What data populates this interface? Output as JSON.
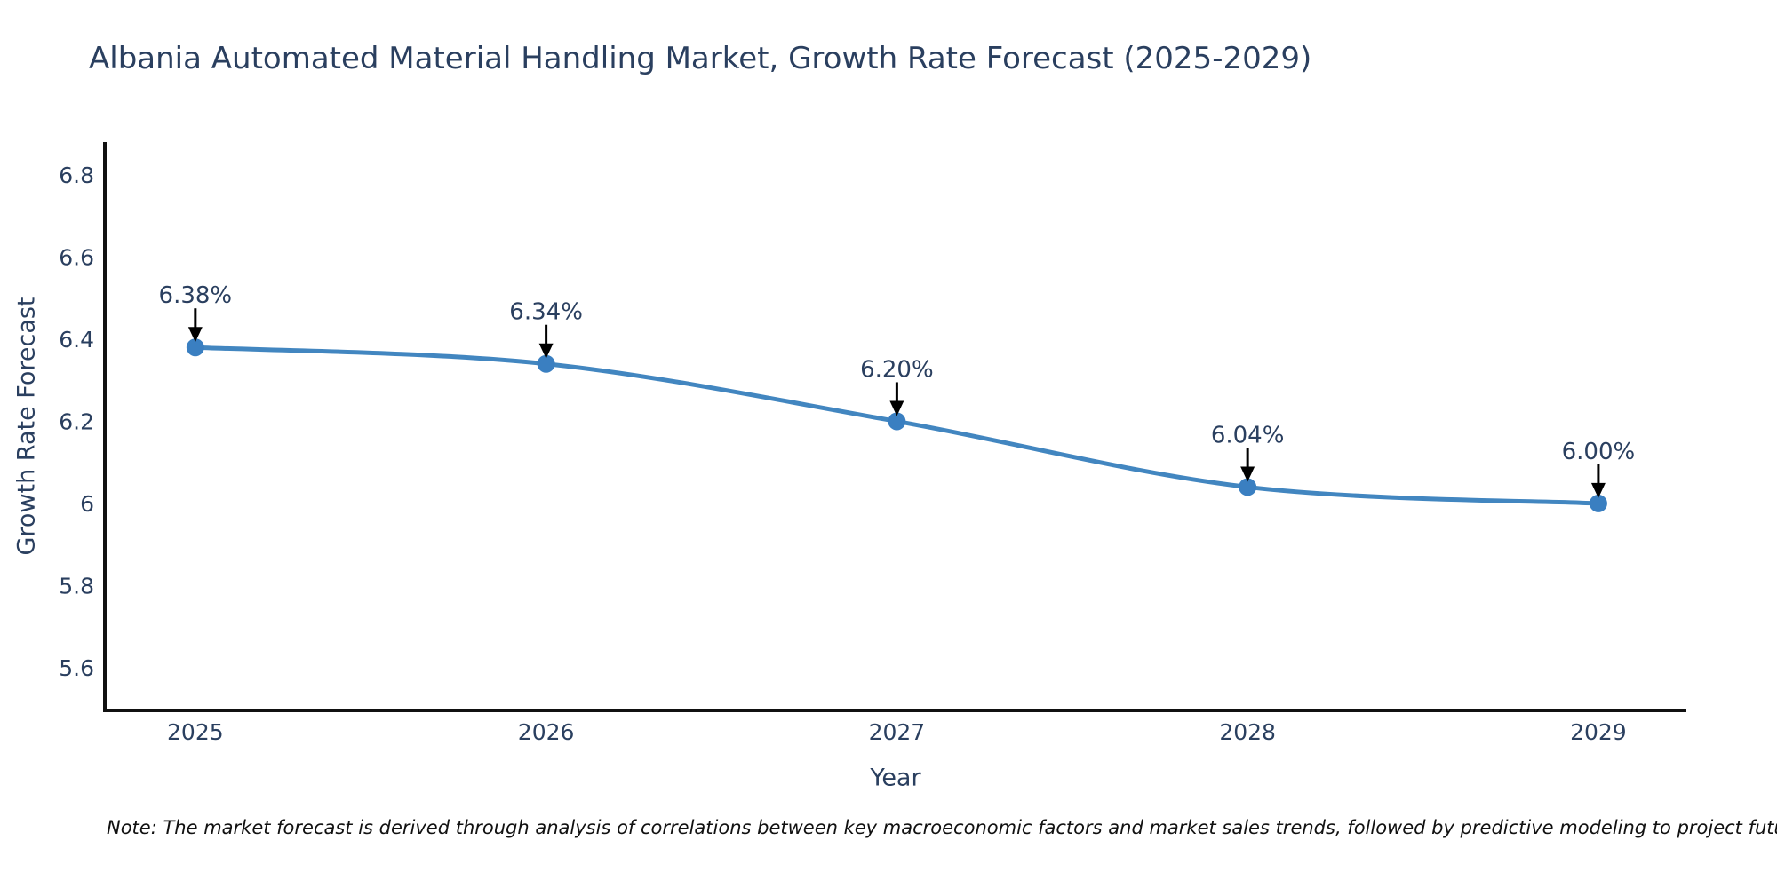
{
  "page": {
    "title": "Albania Automated Material Handling Market, Growth Rate Forecast (2025-2029)",
    "note": "Note: The market forecast is derived through analysis of correlations between key macroeconomic factors and market sales trends, followed by predictive modeling to project future sales"
  },
  "chart_data": {
    "type": "line",
    "title": "Albania Automated Material Handling Market, Growth Rate Forecast (2025-2029)",
    "x": [
      2025,
      2026,
      2027,
      2028,
      2029
    ],
    "series": [
      {
        "name": "Growth Rate Forecast",
        "values": [
          6.38,
          6.34,
          6.2,
          6.04,
          6.0
        ]
      }
    ],
    "point_labels": [
      "6.38%",
      "6.34%",
      "6.20%",
      "6.04%",
      "6.00%"
    ],
    "xlabel": "Year",
    "ylabel": "Growth Rate Forecast",
    "xtick_labels": [
      "2025",
      "2026",
      "2027",
      "2028",
      "2029"
    ],
    "ytick_values": [
      5.6,
      5.8,
      6,
      6.2,
      6.4,
      6.6,
      6.8
    ],
    "ytick_labels": [
      "5.6",
      "5.8",
      "6",
      "6.2",
      "6.4",
      "6.6",
      "6.8"
    ],
    "ylim": [
      5.496,
      6.88
    ],
    "xlim": [
      2024.742,
      2029.251
    ],
    "grid": false,
    "legend": false,
    "line_shape": "spline",
    "colors": {
      "line": "#4286c0",
      "marker": "#3a7fc1",
      "arrow": "#000000",
      "axis": "#111111",
      "text": "#2a3f5f",
      "note_text": "#111111",
      "background": "#ffffff"
    }
  }
}
